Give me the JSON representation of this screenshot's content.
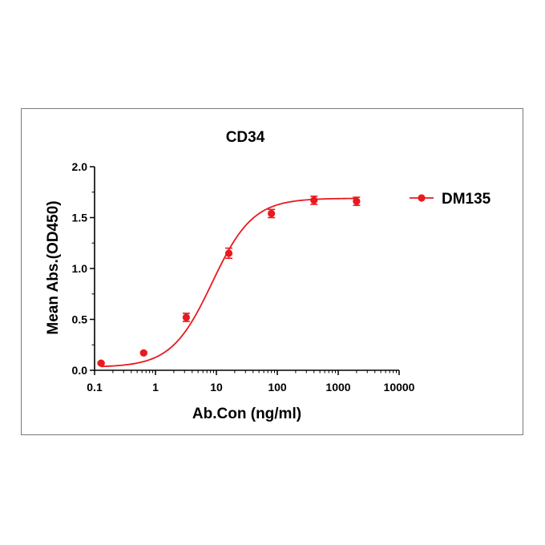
{
  "chart_data": {
    "type": "scatter",
    "title": "CD34",
    "xlabel": "Ab.Con (ng/ml)",
    "ylabel": "Mean Abs.(OD450)",
    "x_scale": "log",
    "xlim": [
      0.1,
      10000
    ],
    "ylim": [
      0,
      2.0
    ],
    "x_ticks": [
      "0.1",
      "1",
      "10",
      "100",
      "1000",
      "10000"
    ],
    "y_ticks": [
      "0.0",
      "0.5",
      "1.0",
      "1.5",
      "2.0"
    ],
    "grid": false,
    "legend_position": "right",
    "color": "#e8191f",
    "series": [
      {
        "name": "DM135",
        "x": [
          0.128,
          0.64,
          3.2,
          16,
          80,
          400,
          2000
        ],
        "y": [
          0.07,
          0.17,
          0.52,
          1.15,
          1.54,
          1.67,
          1.66
        ],
        "error": [
          0.01,
          0.01,
          0.04,
          0.05,
          0.04,
          0.04,
          0.04
        ],
        "fit": {
          "model": "4PL",
          "bottom": 0.03,
          "top": 1.69,
          "ec50": 8.5,
          "hill": 1.3
        }
      }
    ]
  }
}
